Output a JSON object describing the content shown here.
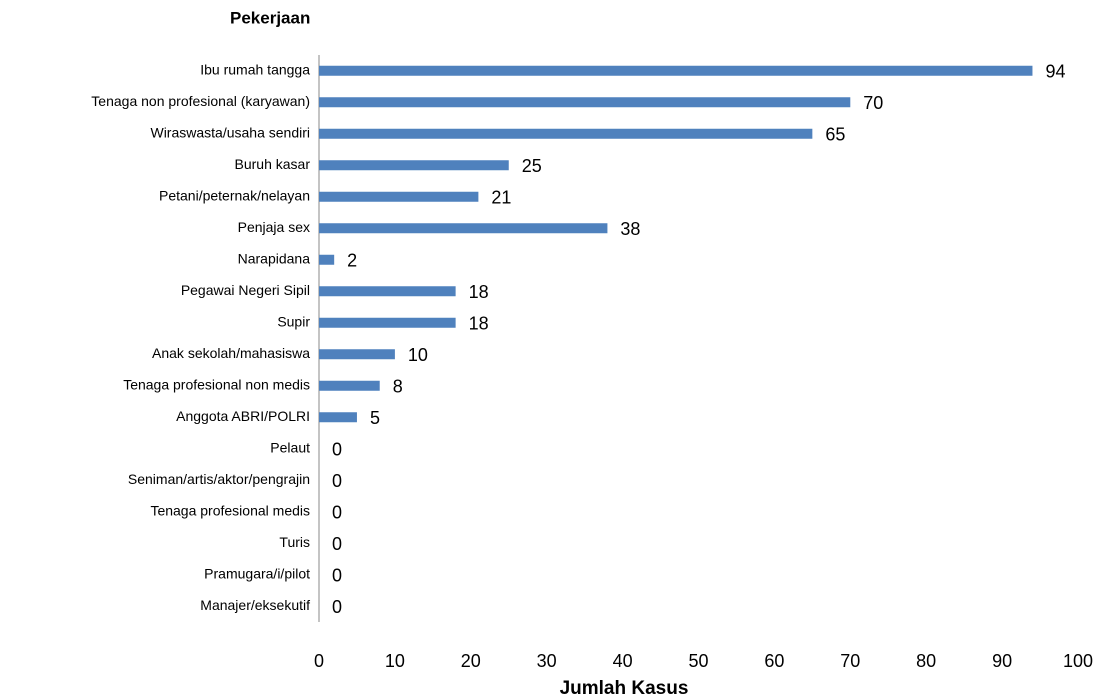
{
  "chart_data": {
    "type": "bar",
    "orientation": "horizontal",
    "title": "Pekerjaan",
    "x_label": "Jumlah Kasus",
    "categories": [
      "Ibu rumah tangga",
      "Tenaga non profesional (karyawan)",
      "Wiraswasta/usaha sendiri",
      "Buruh kasar",
      "Petani/peternak/nelayan",
      "Penjaja sex",
      "Narapidana",
      "Pegawai Negeri Sipil",
      "Supir",
      "Anak sekolah/mahasiswa",
      "Tenaga profesional non medis",
      "Anggota ABRI/POLRI",
      "Pelaut",
      "Seniman/artis/aktor/pengrajin",
      "Tenaga profesional medis",
      "Turis",
      "Pramugara/i/pilot",
      "Manajer/eksekutif"
    ],
    "values": [
      94,
      70,
      65,
      25,
      21,
      38,
      2,
      18,
      18,
      10,
      8,
      5,
      0,
      0,
      0,
      0,
      0,
      0
    ],
    "color": "#4f81bd",
    "xlim": [
      0,
      100
    ],
    "xticks": [
      0,
      10,
      20,
      30,
      40,
      50,
      60,
      70,
      80,
      90,
      100
    ],
    "grid": false
  }
}
